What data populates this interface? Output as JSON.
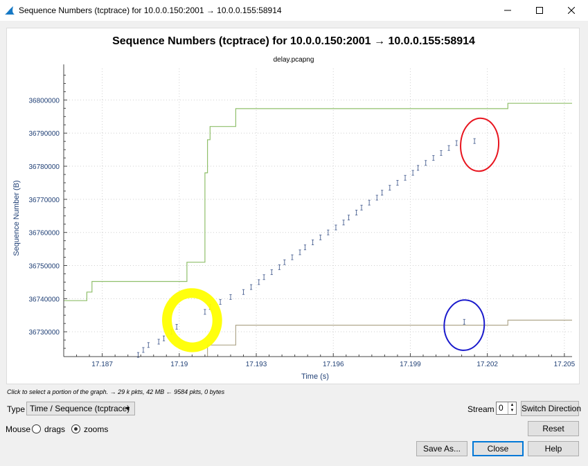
{
  "window": {
    "title": "Sequence Numbers (tcptrace) for 10.0.0.150:2001 → 10.0.0.155:58914"
  },
  "chart_data": {
    "type": "scatter",
    "title": "Sequence Numbers (tcptrace) for 10.0.0.150:2001 → 10.0.0.155:58914",
    "subtitle": "delay.pcapng",
    "xlabel": "Time (s)",
    "ylabel": "Sequence Number (B)",
    "xlim": [
      17.1855,
      17.2053
    ],
    "ylim": [
      36722500,
      36809500
    ],
    "x_ticks": [
      17.187,
      17.19,
      17.193,
      17.196,
      17.199,
      17.202,
      17.205
    ],
    "x_tick_labels": [
      "17.187",
      "17.19",
      "17.193",
      "17.196",
      "17.199",
      "17.202",
      "17.205"
    ],
    "y_ticks": [
      36730000,
      36740000,
      36750000,
      36760000,
      36770000,
      36780000,
      36790000,
      36800000
    ],
    "y_tick_labels": [
      "36730000",
      "36740000",
      "36750000",
      "36760000",
      "36770000",
      "36780000",
      "36790000",
      "36800000"
    ],
    "grid": true,
    "colors": {
      "segments": "#5a6f9c",
      "receive_window": "#8fbf6a",
      "ack": "#b0a78c",
      "axis_text": "#1f3f75",
      "annotation_yellow": "#ffff00",
      "annotation_red": "#e8141e",
      "annotation_blue": "#1a1acc"
    },
    "series": [
      {
        "type": "step",
        "points": [
          [
            17.1855,
            36739400
          ],
          [
            17.1864,
            36739400
          ],
          [
            17.1864,
            36742000
          ],
          [
            17.1866,
            36742000
          ],
          [
            17.1866,
            36745200
          ],
          [
            17.1903,
            36745200
          ],
          [
            17.1903,
            36751000
          ],
          [
            17.191,
            36751000
          ],
          [
            17.191,
            36778000
          ],
          [
            17.1911,
            36778000
          ],
          [
            17.1911,
            36788000
          ],
          [
            17.1912,
            36788000
          ],
          [
            17.1912,
            36792000
          ],
          [
            17.1922,
            36792000
          ],
          [
            17.1922,
            36797400
          ],
          [
            17.2028,
            36797400
          ],
          [
            17.2028,
            36799000
          ],
          [
            17.2053,
            36799000
          ]
        ]
      },
      {
        "type": "step",
        "points": [
          [
            17.1911,
            36722500
          ],
          [
            17.1911,
            36726000
          ],
          [
            17.1922,
            36726000
          ],
          [
            17.1922,
            36732000
          ],
          [
            17.2028,
            36732000
          ],
          [
            17.2028,
            36733500
          ],
          [
            17.2053,
            36733500
          ]
        ]
      },
      {
        "type": "errorbar",
        "height": 1460,
        "points": [
          [
            17.1884,
            36723000
          ],
          [
            17.1886,
            36724500
          ],
          [
            17.1888,
            36726000
          ],
          [
            17.1892,
            36727000
          ],
          [
            17.1894,
            36728000
          ],
          [
            17.1897,
            36730000
          ],
          [
            17.1899,
            36731500
          ],
          [
            17.191,
            36736000
          ],
          [
            17.1912,
            36737500
          ],
          [
            17.1916,
            36739000
          ],
          [
            17.192,
            36740500
          ],
          [
            17.1925,
            36742000
          ],
          [
            17.1928,
            36743500
          ],
          [
            17.1931,
            36745000
          ],
          [
            17.1933,
            36746500
          ],
          [
            17.1936,
            36748000
          ],
          [
            17.1939,
            36749500
          ],
          [
            17.1941,
            36751000
          ],
          [
            17.1944,
            36752500
          ],
          [
            17.1947,
            36754000
          ],
          [
            17.1949,
            36755500
          ],
          [
            17.1952,
            36757000
          ],
          [
            17.1955,
            36758500
          ],
          [
            17.1958,
            36760000
          ],
          [
            17.1961,
            36761500
          ],
          [
            17.1964,
            36763000
          ],
          [
            17.1966,
            36764500
          ],
          [
            17.1969,
            36766000
          ],
          [
            17.1971,
            36767500
          ],
          [
            17.1974,
            36769000
          ],
          [
            17.1977,
            36770500
          ],
          [
            17.1979,
            36772000
          ],
          [
            17.1982,
            36773500
          ],
          [
            17.1985,
            36775000
          ],
          [
            17.1988,
            36776500
          ],
          [
            17.1991,
            36778000
          ],
          [
            17.1993,
            36779500
          ],
          [
            17.1996,
            36781000
          ],
          [
            17.1999,
            36782500
          ],
          [
            17.2002,
            36784000
          ],
          [
            17.2005,
            36785500
          ],
          [
            17.2008,
            36787000
          ],
          [
            17.2015,
            36787600
          ],
          [
            17.2011,
            36733000
          ]
        ]
      }
    ],
    "annotations": [
      {
        "type": "ellipse",
        "color": "yellow",
        "x": 17.1905,
        "y": 36733500,
        "rx": 0.00098,
        "ry": 8200
      },
      {
        "type": "ellipse",
        "color": "red",
        "x": 17.2017,
        "y": 36786500,
        "rx": 0.00074,
        "ry": 8000
      },
      {
        "type": "ellipse",
        "color": "blue",
        "x": 17.2011,
        "y": 36732000,
        "rx": 0.00078,
        "ry": 7600
      }
    ]
  },
  "status": {
    "hint": "Click to select a portion of the graph. → 29 k pkts, 42 MB ← 9584 pkts, 0 bytes"
  },
  "controls": {
    "type_label": "Type",
    "type_value": "Time / Sequence (tcptrace)",
    "stream_label": "Stream",
    "stream_value": "0",
    "switch_direction": "Switch Direction",
    "reset": "Reset",
    "mouse_label": "Mouse",
    "drags_label": "drags",
    "zooms_label": "zooms",
    "mouse_mode": "zooms",
    "save_as": "Save As...",
    "close": "Close",
    "help": "Help"
  }
}
